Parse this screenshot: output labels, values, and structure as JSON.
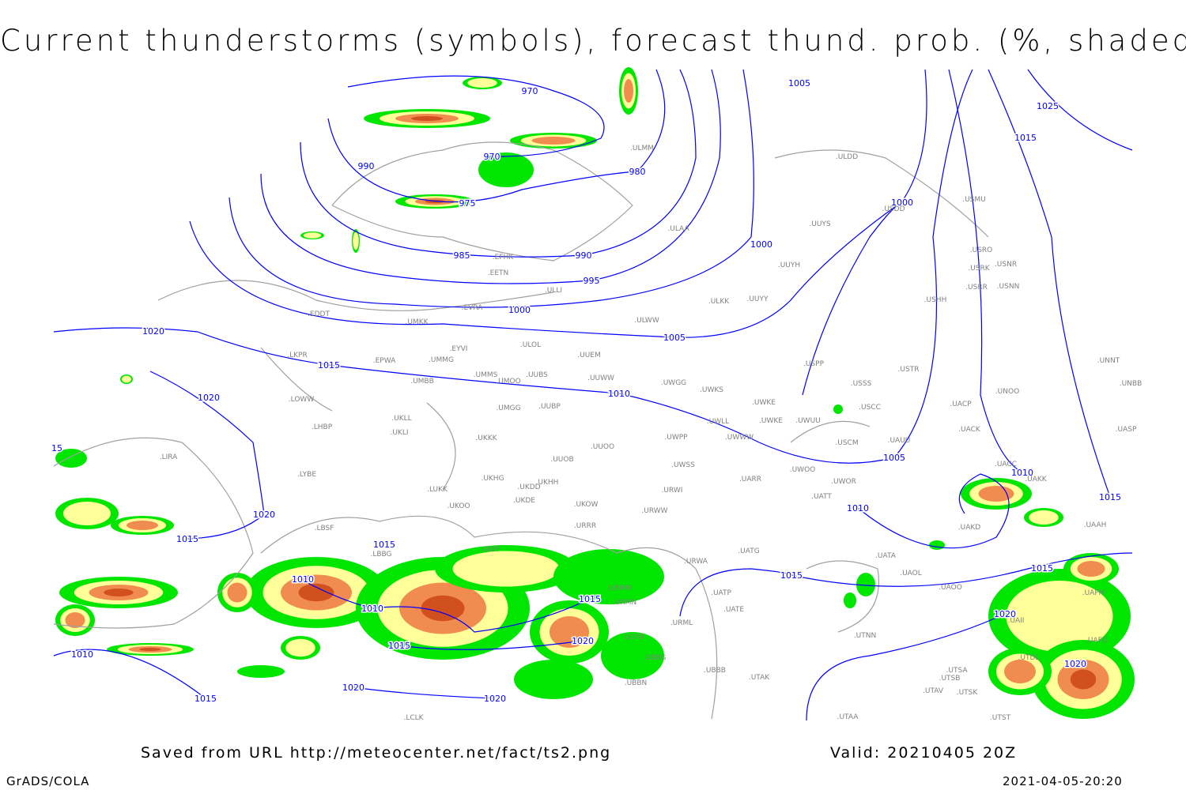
{
  "title": "Current thunderstorms (symbols), forecast thund. prob. (%, shaded)",
  "footer": {
    "source": "Saved from URL http://meteocenter.net/fact/ts2.png",
    "valid": "Valid: 20210405 20Z",
    "software": "GrADS/COLA",
    "timestamp": "2021-04-05-20:20"
  },
  "colors": {
    "isobar": "#0000ff",
    "coastline": "#a0a0a0",
    "prob_low": "#00e600",
    "prob_mid": "#ffff99",
    "prob_high": "#f08c50",
    "prob_max": "#d2501e"
  },
  "isobar_labels": [
    "970",
    "970",
    "990",
    "980",
    "975",
    "985",
    "990",
    "995",
    "1000",
    "1005",
    "1025",
    "1015",
    "1000",
    "1000",
    "1005",
    "1010",
    "1020",
    "1015",
    "1020",
    "1020",
    "1015",
    "1015",
    "1010",
    "1010",
    "1015",
    "1020",
    "1015",
    "1010",
    "1015",
    "1020",
    "1020",
    "1015",
    "1010",
    "1005",
    "1010",
    "1015",
    "1015",
    "1020",
    "1020",
    "15"
  ],
  "stations": [
    "ULMM",
    "ULDD",
    "USMU",
    "USDD",
    "UUYS",
    "ULAA",
    "EFHK",
    "USRO",
    "USRK",
    "USNR",
    "UUYH",
    "EETN",
    "USRR",
    "USNN",
    "ULLI",
    "USHH",
    "ULKK",
    "UUYY",
    "EVRA",
    "UMKK",
    "EDDT",
    "ULWW",
    "ULOL",
    "EYVI",
    "UUEM",
    "LKPR",
    "EPWA",
    "UMMG",
    "USPP",
    "USTR",
    "UMMS",
    "UUBS",
    "UMOO",
    "UUWW",
    "UMBB",
    "UWGG",
    "UWKS",
    "UNNT",
    "UNBB",
    "USSS",
    "UNOO",
    "LOWW",
    "UWKE",
    "USCC",
    "UACP",
    "UMGG",
    "UUBP",
    "UWKE",
    "UWUU",
    "UWLL",
    "LHBP",
    "UKLL",
    "UKLI",
    "UACK",
    "UASP",
    "UKKK",
    "UWPP",
    "UWWW",
    "USCM",
    "UAUU",
    "UUOO",
    "LIRA",
    "UUOB",
    "UWSS",
    "UACC",
    "UAKK",
    "LYBE",
    "UWOO",
    "UARR",
    "UKHG",
    "UKDD",
    "UKHH",
    "UWOR",
    "LUKK",
    "URWI",
    "UATT",
    "UKDE",
    "UKOO",
    "UKOW",
    "URWW",
    "LBSF",
    "URRR",
    "UAKD",
    "UAAH",
    "UKFF",
    "LBBG",
    "UATG",
    "UATA",
    "URWA",
    "URMM",
    "UAOL",
    "UAOO",
    "UATP",
    "URMN",
    "UATE",
    "UAFM",
    "URML",
    "UGTB",
    "UAII",
    "UTNN",
    "UAFO",
    "UBBG",
    "UTDL",
    "UBBN",
    "UBBB",
    "UTAK",
    "UTSA",
    "UTSB",
    "UTAV",
    "UTSK",
    "LCLK",
    "UTAA",
    "UTST"
  ]
}
